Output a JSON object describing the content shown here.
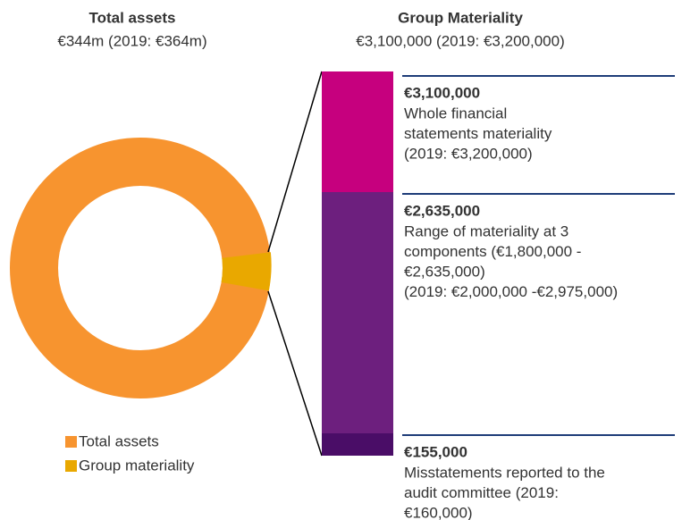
{
  "left": {
    "title": "Total assets",
    "subtitle": "€344m (2019: €364m)",
    "legend": [
      "Total assets",
      "Group materiality"
    ]
  },
  "right": {
    "title": "Group Materiality",
    "subtitle": "€3,100,000 (2019: €3,200,000)",
    "blocks": [
      {
        "amount": "€3,100,000",
        "lines": [
          "Whole financial",
          "statements materiality",
          "(2019: €3,200,000)"
        ]
      },
      {
        "amount": "€2,635,000",
        "lines": [
          "Range of materiality at 3",
          "components (€1,800,000 -",
          "€2,635,000)",
          "(2019: €2,000,000 -€2,975,000)"
        ]
      },
      {
        "amount": "€155,000",
        "lines": [
          "Misstatements reported to the",
          "audit committee (2019:",
          "€160,000)"
        ]
      }
    ]
  }
}
